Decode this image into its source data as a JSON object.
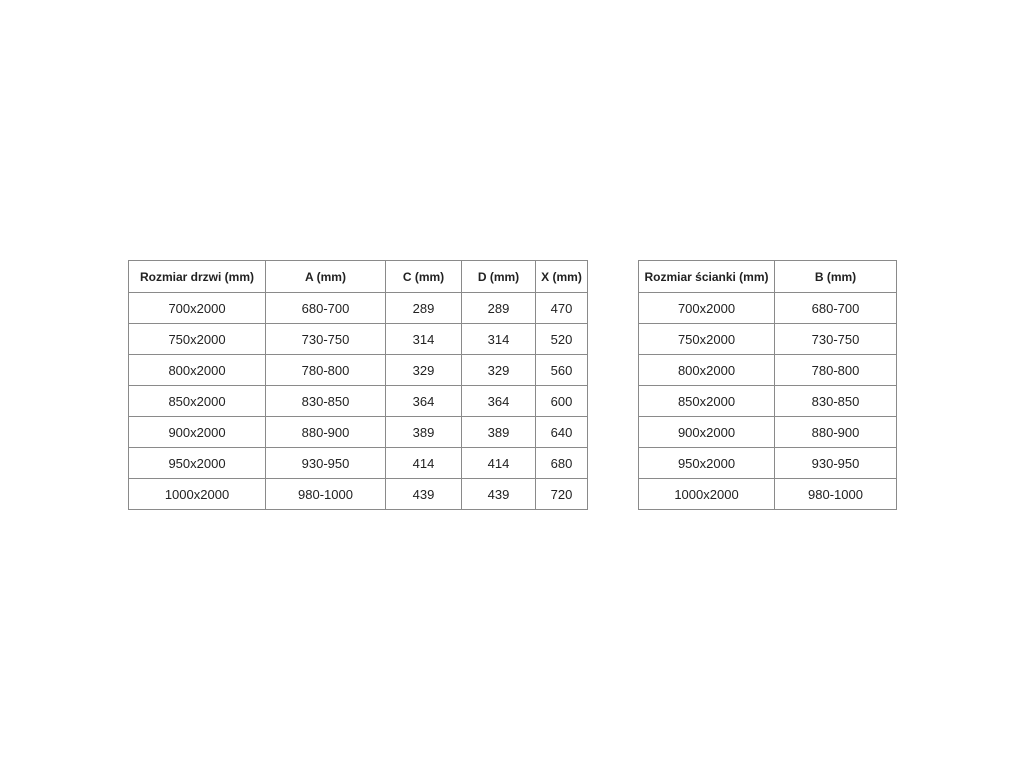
{
  "door_table": {
    "headers": [
      "Rozmiar drzwi (mm)",
      "A (mm)",
      "C (mm)",
      "D (mm)",
      "X (mm)"
    ],
    "rows": [
      [
        "700x2000",
        "680-700",
        "289",
        "289",
        "470"
      ],
      [
        "750x2000",
        "730-750",
        "314",
        "314",
        "520"
      ],
      [
        "800x2000",
        "780-800",
        "329",
        "329",
        "560"
      ],
      [
        "850x2000",
        "830-850",
        "364",
        "364",
        "600"
      ],
      [
        "900x2000",
        "880-900",
        "389",
        "389",
        "640"
      ],
      [
        "950x2000",
        "930-950",
        "414",
        "414",
        "680"
      ],
      [
        "1000x2000",
        "980-1000",
        "439",
        "439",
        "720"
      ]
    ]
  },
  "wall_table": {
    "headers": [
      "Rozmiar ścianki (mm)",
      "B (mm)"
    ],
    "rows": [
      [
        "700x2000",
        "680-700"
      ],
      [
        "750x2000",
        "730-750"
      ],
      [
        "800x2000",
        "780-800"
      ],
      [
        "850x2000",
        "830-850"
      ],
      [
        "900x2000",
        "880-900"
      ],
      [
        "950x2000",
        "930-950"
      ],
      [
        "1000x2000",
        "980-1000"
      ]
    ]
  }
}
